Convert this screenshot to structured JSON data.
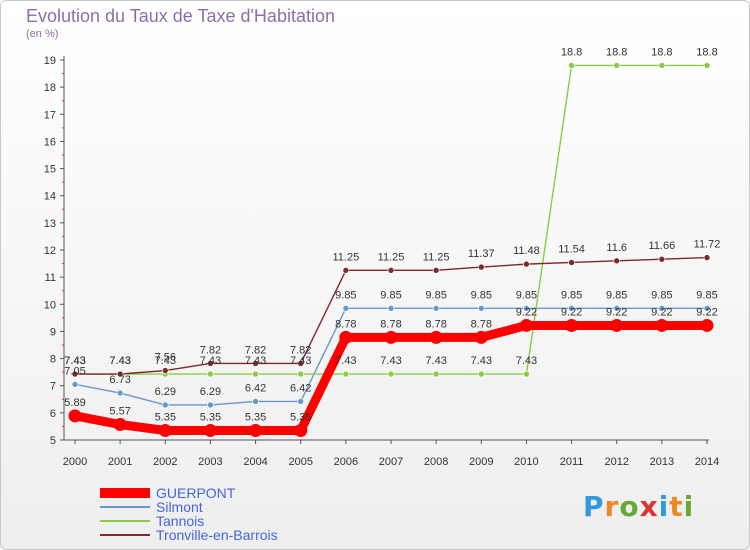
{
  "title": "Evolution du Taux de Taxe d'Habitation",
  "subtitle": "(en %)",
  "logo_text": "Proxiti",
  "chart_data": {
    "type": "line",
    "title": "Evolution du Taux de Taxe d'Habitation",
    "ylabel": "(en %)",
    "xlabel": "",
    "x": [
      "2000",
      "2001",
      "2002",
      "2003",
      "2004",
      "2005",
      "2006",
      "2007",
      "2008",
      "2009",
      "2010",
      "2011",
      "2012",
      "2013",
      "2014"
    ],
    "ylim": [
      5,
      19
    ],
    "yticks": [
      5,
      6,
      7,
      8,
      9,
      10,
      11,
      12,
      13,
      14,
      15,
      16,
      17,
      18,
      19
    ],
    "grid": false,
    "legend_position": "bottom-left",
    "series": [
      {
        "name": "GUERPONT",
        "color": "#ff0000",
        "values": [
          5.89,
          5.57,
          5.35,
          5.35,
          5.35,
          5.35,
          8.78,
          8.78,
          8.78,
          8.78,
          9.22,
          9.22,
          9.22,
          9.22,
          9.22
        ],
        "labels": [
          "5.89",
          "5.57",
          "5.35",
          "5.35",
          "5.35",
          "5.35",
          "8.78",
          "8.78",
          "8.78",
          "8.78",
          "9.22",
          "9.22",
          "9.22",
          "9.22",
          "9.22"
        ]
      },
      {
        "name": "Silmont",
        "color": "#6699cc",
        "values": [
          7.05,
          6.73,
          6.29,
          6.29,
          6.42,
          6.42,
          9.85,
          9.85,
          9.85,
          9.85,
          9.85,
          9.85,
          9.85,
          9.85,
          9.85
        ],
        "labels": [
          "7.05",
          "6.73",
          "6.29",
          "6.29",
          "6.42",
          "6.42",
          "9.85",
          "9.85",
          "9.85",
          "9.85",
          "9.85",
          "9.85",
          "9.85",
          "9.85",
          "9.85"
        ]
      },
      {
        "name": "Tannois",
        "color": "#88cc44",
        "values": [
          7.43,
          7.43,
          7.43,
          7.43,
          7.43,
          7.43,
          7.43,
          7.43,
          7.43,
          7.43,
          7.43,
          18.8,
          18.8,
          18.8,
          18.8
        ],
        "labels": [
          "7.43",
          "7.43",
          "7.43",
          "7.43",
          "7.43",
          "7.43",
          "7.43",
          "7.43",
          "7.43",
          "7.43",
          "7.43",
          "18.8",
          "18.8",
          "18.8",
          "18.8"
        ]
      },
      {
        "name": "Tronville-en-Barrois",
        "color": "#7a2a2a",
        "values": [
          7.43,
          7.43,
          7.56,
          7.82,
          7.82,
          7.82,
          11.25,
          11.25,
          11.25,
          11.37,
          11.48,
          11.54,
          11.6,
          11.66,
          11.72
        ],
        "labels": [
          "7.43",
          "7.43",
          "7.56",
          "7.82",
          "7.82",
          "7.82",
          "11.25",
          "11.25",
          "11.25",
          "11.37",
          "11.48",
          "11.54",
          "11.6",
          "11.66",
          "11.72"
        ]
      }
    ]
  }
}
